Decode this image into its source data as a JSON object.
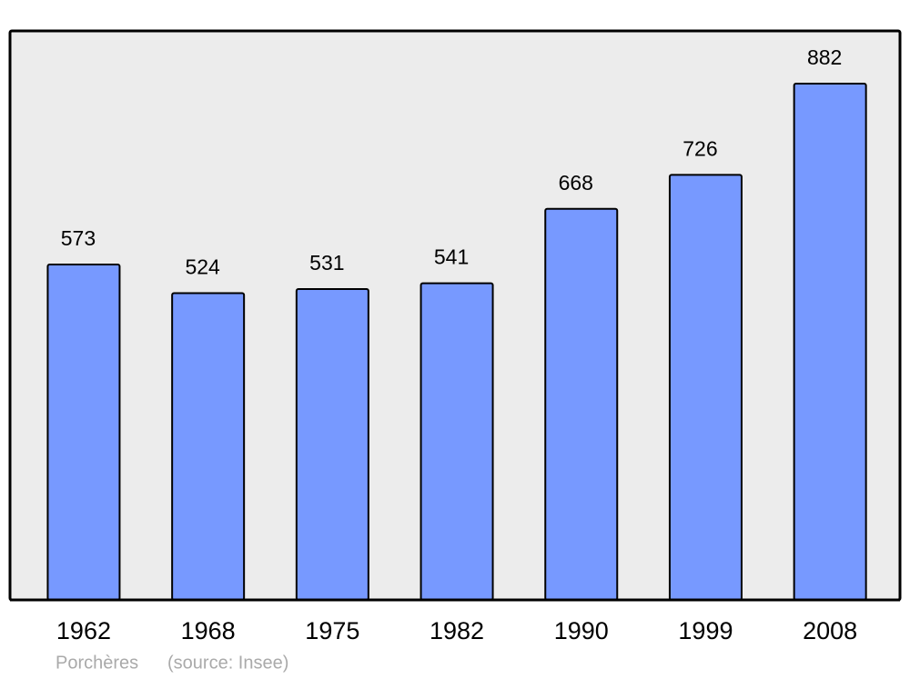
{
  "chart_data": {
    "type": "bar",
    "categories": [
      "1962",
      "1968",
      "1975",
      "1982",
      "1990",
      "1999",
      "2008"
    ],
    "values": [
      573,
      524,
      531,
      541,
      668,
      726,
      882
    ],
    "color": "#7799ff",
    "ylim": [
      0,
      972
    ],
    "place": "Porchères",
    "source": "(source: Insee)"
  }
}
